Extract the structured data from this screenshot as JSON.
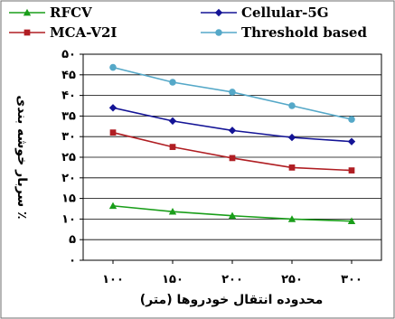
{
  "chart_data": {
    "type": "line",
    "categories": [
      "۱۰۰",
      "۱۵۰",
      "۲۰۰",
      "۲۵۰",
      "۳۰۰"
    ],
    "x": [
      100,
      150,
      200,
      250,
      300
    ],
    "xlabel": "محدوده انتقال خودروها (متر)",
    "ylabel": "سربار خوشه بندی ٪",
    "ylim": [
      0,
      50
    ],
    "yticks": [
      0,
      5,
      10,
      15,
      20,
      25,
      30,
      35,
      40,
      45,
      50
    ],
    "ytick_labels": [
      "۰",
      "۵",
      "۱۰",
      "۱۵",
      "۲۰",
      "۲۵",
      "۳۰",
      "۳۵",
      "۴۰",
      "۴۵",
      "۵۰"
    ],
    "grid": true,
    "legend_position": "top",
    "series": [
      {
        "name": "RFCV",
        "values": [
          13.2,
          11.8,
          10.8,
          10.0,
          9.5
        ],
        "color": "#1a9e1a",
        "marker": "triangle"
      },
      {
        "name": "Cellular-5G",
        "values": [
          37.0,
          33.8,
          31.5,
          29.8,
          28.8
        ],
        "color": "#141496",
        "marker": "diamond"
      },
      {
        "name": "MCA-V2I",
        "values": [
          31.0,
          27.5,
          24.8,
          22.5,
          21.8
        ],
        "color": "#b01e23",
        "marker": "square"
      },
      {
        "name": "Threshold based",
        "values": [
          46.8,
          43.2,
          40.8,
          37.5,
          34.2
        ],
        "color": "#55a8c8",
        "marker": "circle"
      }
    ]
  }
}
